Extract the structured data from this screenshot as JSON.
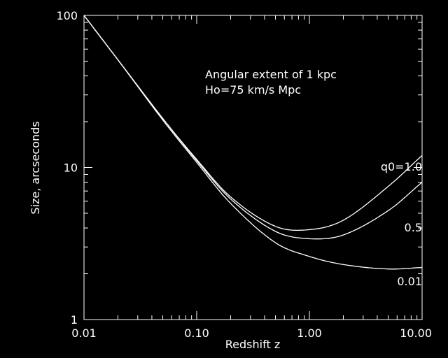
{
  "chart_data": {
    "type": "line",
    "title": "",
    "xlabel": "Redshift z",
    "ylabel": "Size, arcseconds",
    "xscale": "log",
    "yscale": "log",
    "xlim": [
      0.01,
      10.0
    ],
    "ylim": [
      1,
      100
    ],
    "grid": false,
    "colors": {
      "background": "#000000",
      "foreground": "#ffffff"
    },
    "x_ticks": [
      {
        "value": 0.01,
        "label": "0.01"
      },
      {
        "value": 0.1,
        "label": "0.10"
      },
      {
        "value": 1.0,
        "label": "1.00"
      },
      {
        "value": 10.0,
        "label": "10.00"
      }
    ],
    "y_ticks": [
      {
        "value": 1,
        "label": "1"
      },
      {
        "value": 10,
        "label": "10"
      },
      {
        "value": 100,
        "label": "100"
      }
    ],
    "annotation_lines": [
      "Angular extent of 1 kpc",
      "Ho=75 km/s Mpc"
    ],
    "x": [
      0.01,
      0.02,
      0.05,
      0.1,
      0.2,
      0.5,
      1.0,
      2.0,
      5.0,
      10.0
    ],
    "series": [
      {
        "name": "q0=1.0",
        "values": [
          100,
          51,
          21,
          11.3,
          6.4,
          4.1,
          3.9,
          4.5,
          7.5,
          12
        ]
      },
      {
        "name": "0.5",
        "values": [
          100,
          51,
          21,
          11.1,
          6.2,
          3.8,
          3.4,
          3.6,
          5.2,
          8.0
        ]
      },
      {
        "name": "0.01",
        "values": [
          100,
          51,
          20.5,
          10.8,
          5.8,
          3.2,
          2.6,
          2.3,
          2.15,
          2.2
        ]
      }
    ]
  }
}
